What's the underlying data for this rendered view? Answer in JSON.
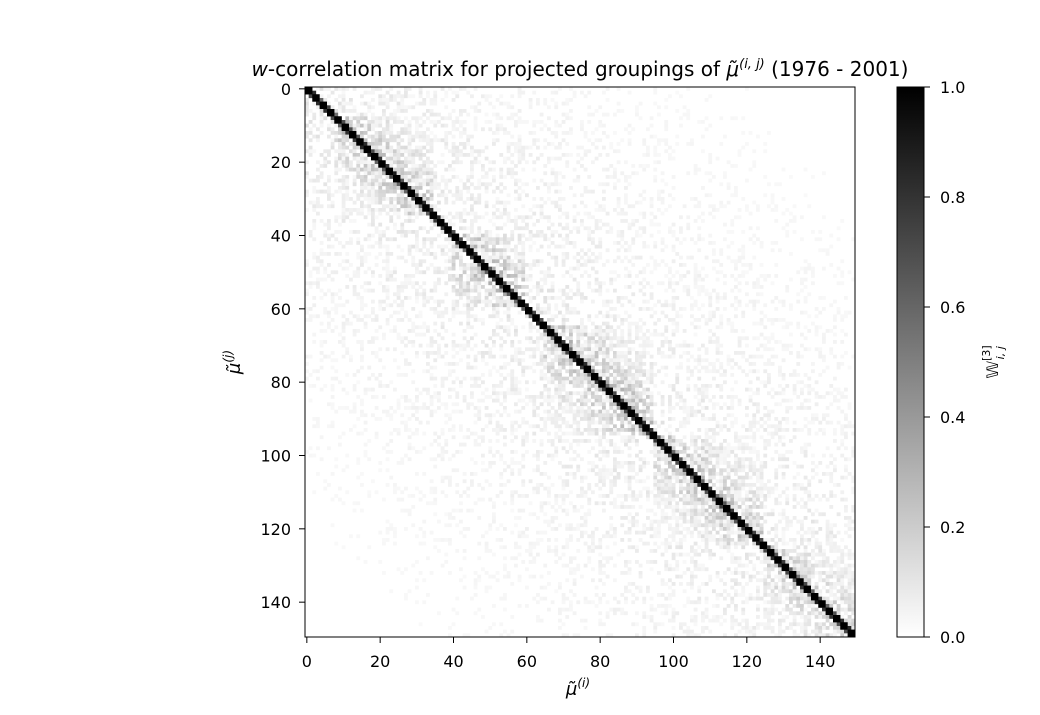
{
  "chart_data": {
    "type": "heatmap",
    "title": {
      "prefix": "w",
      "main": "-correlation matrix for projected groupings of ",
      "symbol": "μ̃",
      "superscript": "(i, j)",
      "suffix": " (1976 - 2001)"
    },
    "xlabel": {
      "symbol": "μ̃",
      "superscript": "(i)"
    },
    "ylabel": {
      "symbol": "μ̃",
      "superscript": "(j)"
    },
    "colorbar_label": {
      "symbol": "𝕎",
      "superscript": "[3]",
      "subscript": "i, j"
    },
    "n": 150,
    "xlim": [
      0,
      150
    ],
    "ylim": [
      150,
      0
    ],
    "x_ticks": [
      0,
      20,
      40,
      60,
      80,
      100,
      120,
      140
    ],
    "y_ticks": [
      0,
      20,
      40,
      60,
      80,
      100,
      120,
      140
    ],
    "x_tick_labels": [
      "0",
      "20",
      "40",
      "60",
      "80",
      "100",
      "120",
      "140"
    ],
    "y_tick_labels": [
      "0",
      "20",
      "40",
      "60",
      "80",
      "100",
      "120",
      "140"
    ],
    "colorbar_ticks": [
      0.0,
      0.2,
      0.4,
      0.6,
      0.8,
      1.0
    ],
    "colorbar_tick_labels": [
      "0.0",
      "0.2",
      "0.4",
      "0.6",
      "0.8",
      "1.0"
    ],
    "colormap": {
      "low": "#ffffff",
      "high": "#000000"
    },
    "vmin": 0.0,
    "vmax": 1.0,
    "diagonal_value": 1.0,
    "dense_blocks": [
      {
        "start": 8,
        "end": 35,
        "level": 0.35
      },
      {
        "start": 40,
        "end": 60,
        "level": 0.4
      },
      {
        "start": 65,
        "end": 95,
        "level": 0.4
      },
      {
        "start": 95,
        "end": 125,
        "level": 0.35
      },
      {
        "start": 125,
        "end": 150,
        "level": 0.3
      }
    ]
  }
}
